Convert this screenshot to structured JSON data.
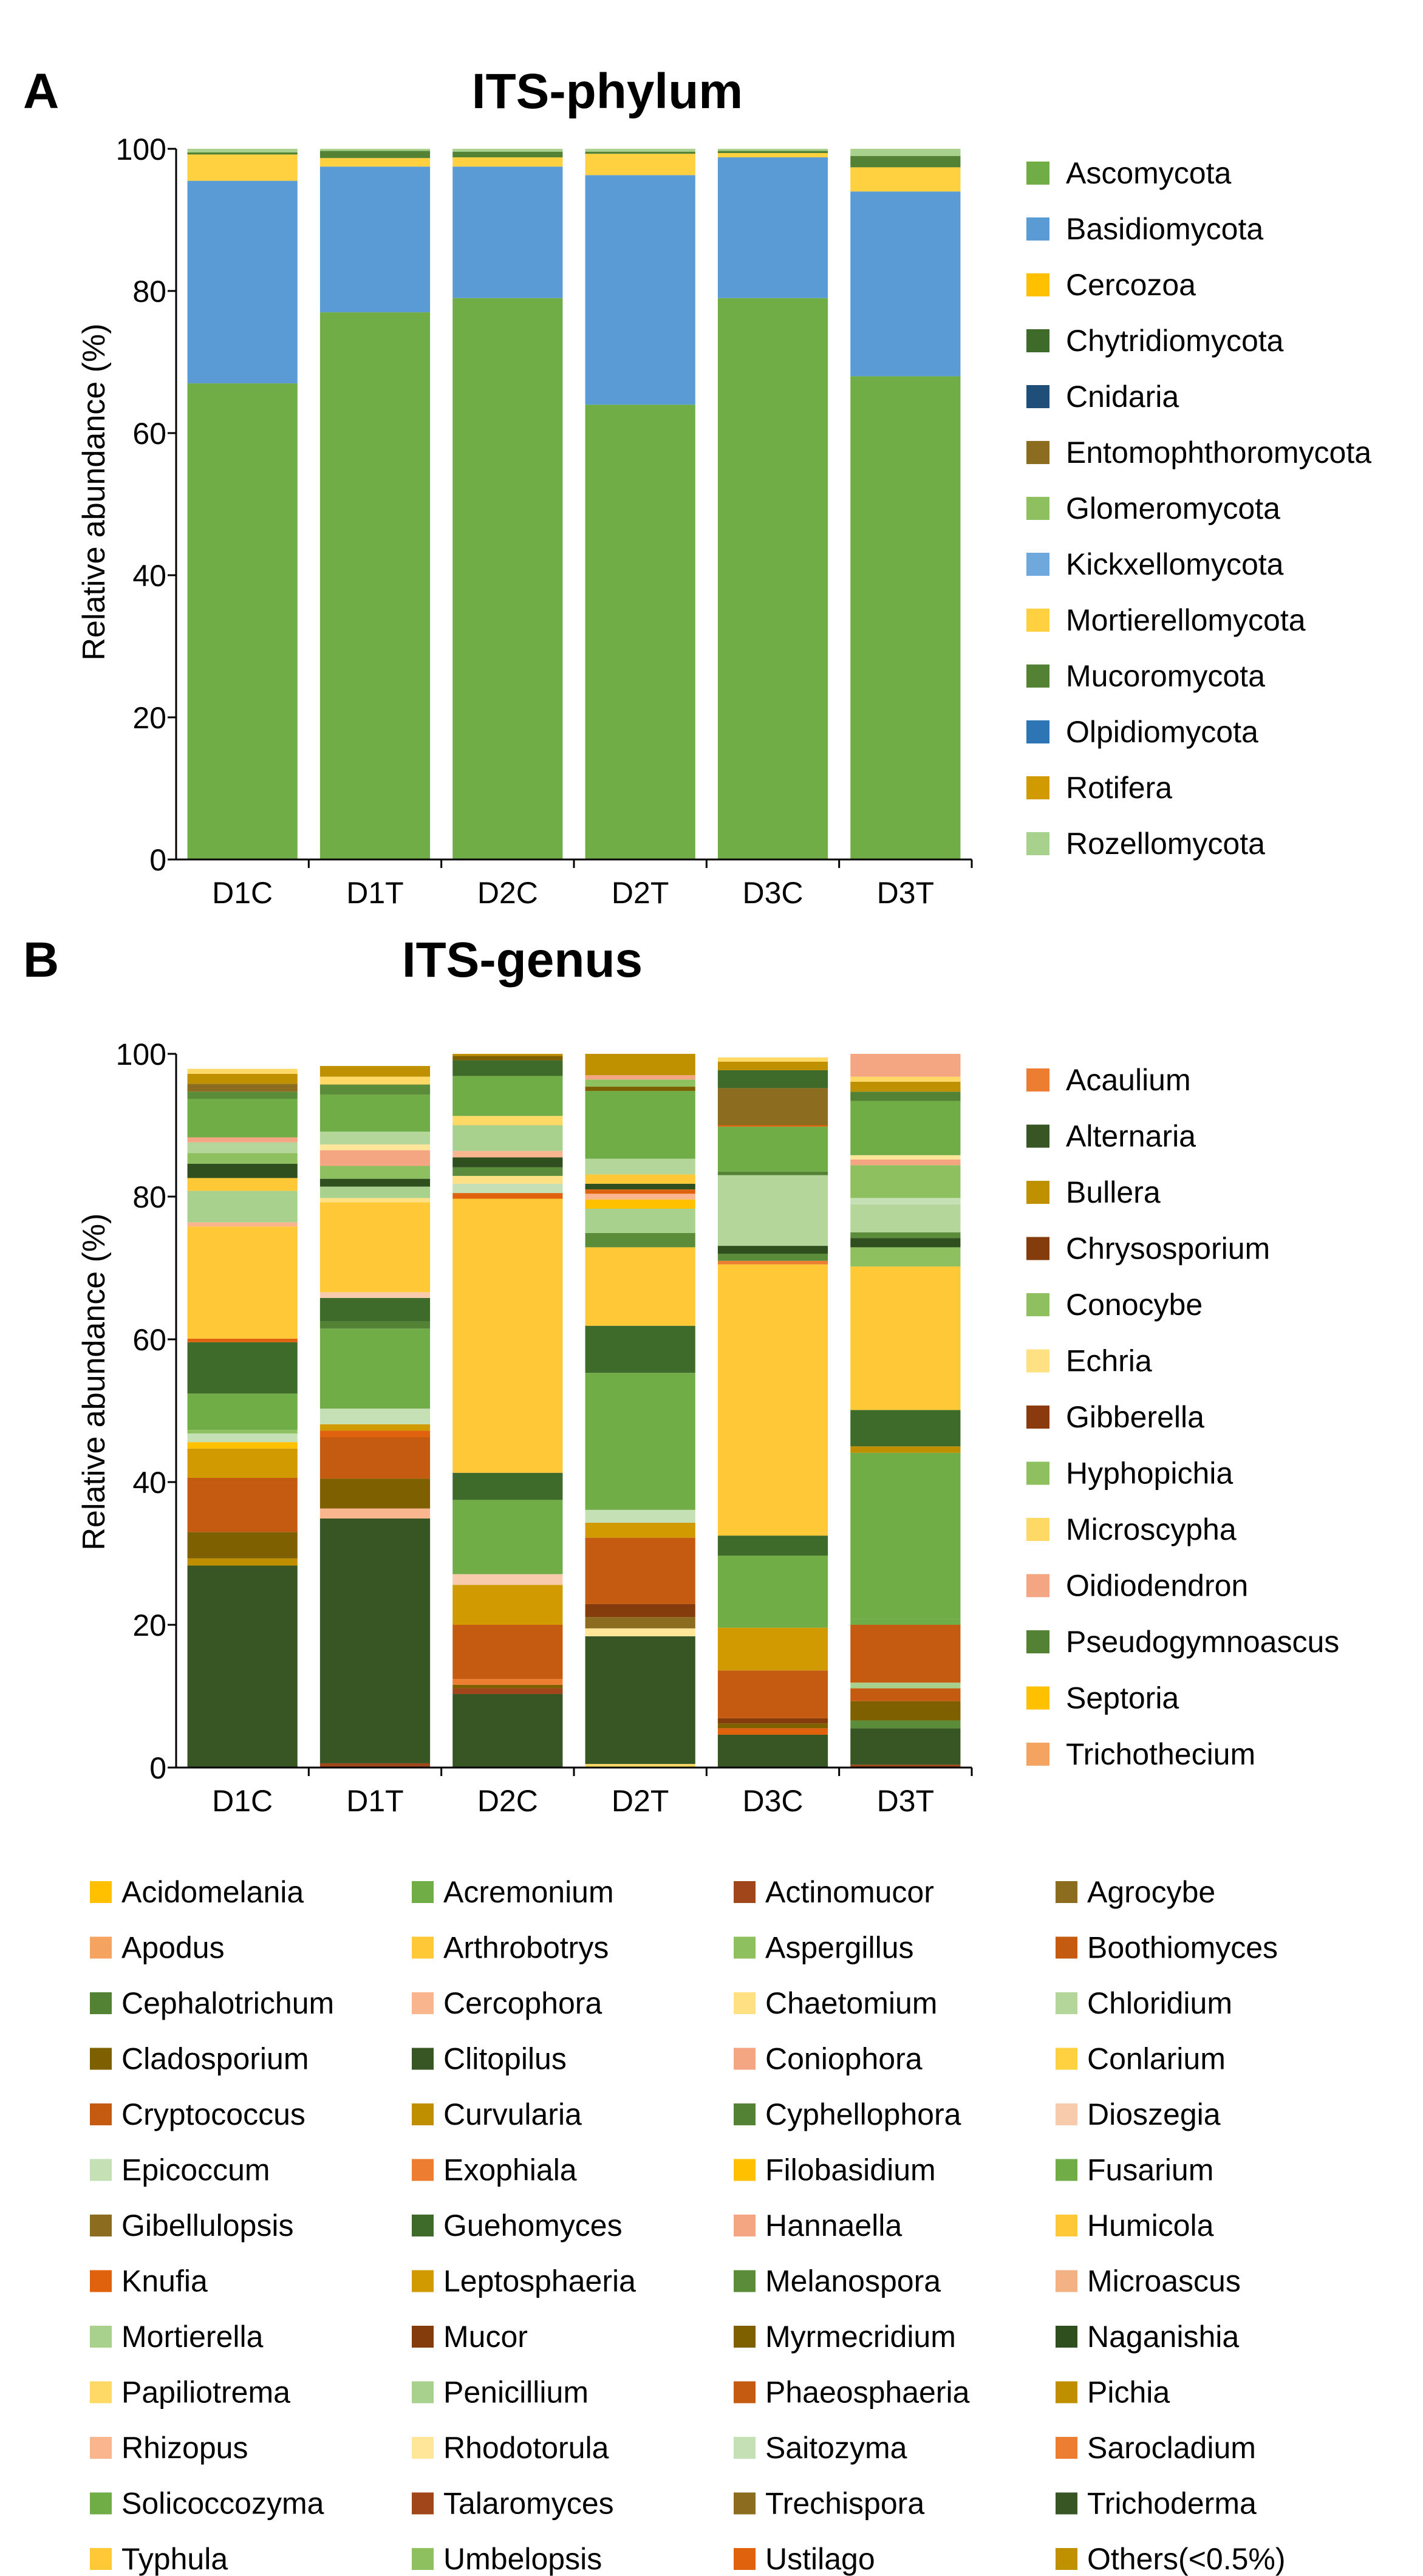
{
  "chart_data": [
    {
      "panel_letter": "A",
      "type": "bar",
      "stacked": true,
      "title": "ITS-phylum",
      "xlabel": "",
      "ylabel": "Relative abundance (%)",
      "ylim": [
        0,
        100
      ],
      "yticks": [
        "0",
        "20",
        "40",
        "60",
        "80",
        "100"
      ],
      "categories": [
        "D1C",
        "D1T",
        "D2C",
        "D2T",
        "D3C",
        "D3T"
      ],
      "series": [
        {
          "name": "Ascomycota",
          "color": "#70ad47",
          "values": [
            67,
            77,
            79,
            64,
            79,
            68
          ]
        },
        {
          "name": "Basidiomycota",
          "color": "#5b9bd5",
          "values": [
            28.5,
            20.5,
            18.5,
            32.3,
            19.8,
            26
          ]
        },
        {
          "name": "Cercozoa",
          "color": "#ffc000",
          "values": [
            0,
            0,
            0,
            0,
            0,
            0
          ]
        },
        {
          "name": "Chytridiomycota",
          "color": "#3e6b2a",
          "values": [
            0,
            0,
            0,
            0,
            0,
            0
          ]
        },
        {
          "name": "Cnidaria",
          "color": "#1f4e79",
          "values": [
            0,
            0,
            0,
            0,
            0,
            0
          ]
        },
        {
          "name": "Entomophthoromycota",
          "color": "#8c6d1f",
          "values": [
            0,
            0,
            0,
            0,
            0,
            0
          ]
        },
        {
          "name": "Glomeromycota",
          "color": "#8fc05f",
          "values": [
            0,
            0,
            0,
            0,
            0,
            0
          ]
        },
        {
          "name": "Kickxellomycota",
          "color": "#6fa8dc",
          "values": [
            0,
            0,
            0,
            0,
            0,
            0
          ]
        },
        {
          "name": "Mortierellomycota",
          "color": "#ffd040",
          "values": [
            3.7,
            1.2,
            1.3,
            3,
            0.6,
            3.4
          ]
        },
        {
          "name": "Mucoromycota",
          "color": "#548235",
          "values": [
            0.3,
            1,
            0.8,
            0.3,
            0.3,
            1.6
          ]
        },
        {
          "name": "Olpidiomycota",
          "color": "#2e75b6",
          "values": [
            0,
            0,
            0,
            0,
            0,
            0
          ]
        },
        {
          "name": "Rotifera",
          "color": "#d09a00",
          "values": [
            0,
            0,
            0,
            0,
            0,
            0
          ]
        },
        {
          "name": "Rozellomycota",
          "color": "#a9d18e",
          "values": [
            0.5,
            0.3,
            0.4,
            0.4,
            0.3,
            1
          ]
        }
      ]
    },
    {
      "panel_letter": "B",
      "type": "bar",
      "stacked": true,
      "title": "ITS-genus",
      "xlabel": "",
      "ylabel": "Relative abundance (%)",
      "ylim": [
        0,
        100
      ],
      "yticks": [
        "0",
        "20",
        "40",
        "60",
        "80",
        "100"
      ],
      "categories": [
        "D1C",
        "D1T",
        "D2C",
        "D2T",
        "D3C",
        "D3T"
      ],
      "right_legend": [
        "Acaulium",
        "Alternaria",
        "Bullera",
        "Chrysosporium",
        "Conocybe",
        "Echria",
        "Gibberella",
        "Hyphopichia",
        "Microscypha",
        "Oidiodendron",
        "Pseudogymnoascus",
        "Septoria",
        "Trichothecium"
      ],
      "bottom_legend": [
        "Acidomelania",
        "Acremonium",
        "Actinomucor",
        "Agrocybe",
        "Apodus",
        "Arthrobotrys",
        "Aspergillus",
        "Boothiomyces",
        "Cephalotrichum",
        "Cercophora",
        "Chaetomium",
        "Chloridium",
        "Cladosporium",
        "Clitopilus",
        "Coniophora",
        "Conlarium",
        "Cryptococcus",
        "Curvularia",
        "Cyphellophora",
        "Dioszegia",
        "Epicoccum",
        "Exophiala",
        "Filobasidium",
        "Fusarium",
        "Gibellulopsis",
        "Guehomyces",
        "Hannaella",
        "Humicola",
        "Knufia",
        "Leptosphaeria",
        "Melanospora",
        "Microascus",
        "Mortierella",
        "Mucor",
        "Myrmecridium",
        "Naganishia",
        "Papiliotrema",
        "Penicillium",
        "Phaeosphaeria",
        "Pichia",
        "Rhizopus",
        "Rhodotorula",
        "Saitozyma",
        "Sarocladium",
        "Solicoccozyma",
        "Talaromyces",
        "Trechispora",
        "Trichoderma",
        "Typhula",
        "Umbelopsis",
        "Ustilago",
        "Others(<0.5%)"
      ],
      "colors": {
        "Acaulium": "#ed7d31",
        "Alternaria": "#375623",
        "Bullera": "#bf9000",
        "Chrysosporium": "#843c0c",
        "Conocybe": "#8fc05f",
        "Echria": "#ffe082",
        "Gibberella": "#8b3a0e",
        "Hyphopichia": "#8fc05f",
        "Microscypha": "#ffd966",
        "Oidiodendron": "#f4a582",
        "Pseudogymnoascus": "#548235",
        "Septoria": "#ffc000",
        "Trichothecium": "#f4a460",
        "Acidomelania": "#ffc000",
        "Acremonium": "#70ad47",
        "Actinomucor": "#a0461a",
        "Agrocybe": "#8c6d1f",
        "Apodus": "#f4a460",
        "Arthrobotrys": "#ffc837",
        "Aspergillus": "#8fc05f",
        "Boothiomyces": "#c55a11",
        "Cephalotrichum": "#548235",
        "Cercophora": "#f8b58e",
        "Chaetomium": "#ffe082",
        "Chloridium": "#b5d69b",
        "Cladosporium": "#7f6000",
        "Clitopilus": "#375623",
        "Coniophora": "#f4a582",
        "Conlarium": "#ffd040",
        "Cryptococcus": "#c55a11",
        "Curvularia": "#bf8f00",
        "Cyphellophora": "#548235",
        "Dioszegia": "#f8cbad",
        "Epicoccum": "#c5e0b4",
        "Exophiala": "#ed7d31",
        "Filobasidium": "#ffc000",
        "Fusarium": "#70ad47",
        "Gibellulopsis": "#8c6d1f",
        "Guehomyces": "#3e6b2a",
        "Hannaella": "#f4a582",
        "Humicola": "#ffc837",
        "Knufia": "#e0620d",
        "Leptosphaeria": "#d09a00",
        "Melanospora": "#5b8c3a",
        "Microascus": "#f4b183",
        "Mortierella": "#a9d18e",
        "Mucor": "#843c0c",
        "Myrmecridium": "#7f6000",
        "Naganishia": "#2f4f1f",
        "Papiliotrema": "#ffd966",
        "Penicillium": "#a9d18e",
        "Phaeosphaeria": "#c55a11",
        "Pichia": "#bf8f00",
        "Rhizopus": "#f8b58e",
        "Rhodotorula": "#ffe699",
        "Saitozyma": "#c5e0b4",
        "Sarocladium": "#ed7d31",
        "Solicoccozyma": "#70ad47",
        "Talaromyces": "#a0461a",
        "Trechispora": "#8c6d1f",
        "Trichoderma": "#375623",
        "Typhula": "#ffc837",
        "Umbelopsis": "#8fc05f",
        "Ustilago": "#e0620d",
        "Others(<0.5%)": "#bf9000"
      },
      "stacks": [
        [
          {
            "name": "Trichoderma",
            "value": 28.3
          },
          {
            "name": "Curvularia",
            "value": 1
          },
          {
            "name": "Cladosporium",
            "value": 3.7
          },
          {
            "name": "Boothiomyces",
            "value": 7.6
          },
          {
            "name": "Leptosphaeria",
            "value": 4.1
          },
          {
            "name": "Filobasidium",
            "value": 0.9
          },
          {
            "name": "Epicoccum",
            "value": 1.2
          },
          {
            "name": "Aspergillus",
            "value": 0.5
          },
          {
            "name": "Acremonium",
            "value": 5.1
          },
          {
            "name": "Guehomyces",
            "value": 7.2
          },
          {
            "name": "Ustilago",
            "value": 0.5
          },
          {
            "name": "Arthrobotrys",
            "value": 15.7
          },
          {
            "name": "Cercophora",
            "value": 0.6
          },
          {
            "name": "Penicillium",
            "value": 4.4
          },
          {
            "name": "Humicola",
            "value": 1.8
          },
          {
            "name": "Naganishia",
            "value": 2
          },
          {
            "name": "Umbelopsis",
            "value": 1.5
          },
          {
            "name": "Chloridium",
            "value": 1.5
          },
          {
            "name": "Coniophora",
            "value": 0.7
          },
          {
            "name": "Fusarium",
            "value": 5.4
          },
          {
            "name": "Melanospora",
            "value": 1
          },
          {
            "name": "Agrocybe",
            "value": 1.1
          },
          {
            "name": "Others(<0.5%)",
            "value": 1.4
          },
          {
            "name": "Papiliotrema",
            "value": 0.7
          }
        ],
        [
          {
            "name": "Talaromyces",
            "value": 0.6
          },
          {
            "name": "Trichoderma",
            "value": 34.3
          },
          {
            "name": "Rhizopus",
            "value": 1.4
          },
          {
            "name": "Cladosporium",
            "value": 4.2
          },
          {
            "name": "Boothiomyces",
            "value": 5.8
          },
          {
            "name": "Knufia",
            "value": 0.9
          },
          {
            "name": "Leptosphaeria",
            "value": 0.9
          },
          {
            "name": "Epicoccum",
            "value": 2.2
          },
          {
            "name": "Acremonium",
            "value": 11.2
          },
          {
            "name": "Cyphellophora",
            "value": 1
          },
          {
            "name": "Guehomyces",
            "value": 3.3
          },
          {
            "name": "Dioszegia",
            "value": 0.8
          },
          {
            "name": "Arthrobotrys",
            "value": 12.6
          },
          {
            "name": "Chaetomium",
            "value": 0.6
          },
          {
            "name": "Penicillium",
            "value": 1.6
          },
          {
            "name": "Naganishia",
            "value": 1.1
          },
          {
            "name": "Umbelopsis",
            "value": 1.8
          },
          {
            "name": "Hannaella",
            "value": 2.2
          },
          {
            "name": "Rhodotorula",
            "value": 0.8
          },
          {
            "name": "Chloridium",
            "value": 1.8
          },
          {
            "name": "Fusarium",
            "value": 5.2
          },
          {
            "name": "Melanospora",
            "value": 1.4
          },
          {
            "name": "Papiliotrema",
            "value": 1.1
          },
          {
            "name": "Others(<0.5%)",
            "value": 1.5
          }
        ],
        [
          {
            "name": "Trichoderma",
            "value": 10.3
          },
          {
            "name": "Talaromyces",
            "value": 0.8
          },
          {
            "name": "Cladosporium",
            "value": 0.5
          },
          {
            "name": "Exophiala",
            "value": 0.8
          },
          {
            "name": "Boothiomyces",
            "value": 7.6
          },
          {
            "name": "Leptosphaeria",
            "value": 5.6
          },
          {
            "name": "Dioszegia",
            "value": 1.5
          },
          {
            "name": "Acremonium",
            "value": 10.4
          },
          {
            "name": "Guehomyces",
            "value": 3.8
          },
          {
            "name": "Arthrobotrys",
            "value": 38.4
          },
          {
            "name": "Ustilago",
            "value": 0.8
          },
          {
            "name": "Epicoccum",
            "value": 1.3
          },
          {
            "name": "Chaetomium",
            "value": 1.1
          },
          {
            "name": "Melanospora",
            "value": 1.2
          },
          {
            "name": "Naganishia",
            "value": 1.4
          },
          {
            "name": "Cercophora",
            "value": 0.9
          },
          {
            "name": "Penicillium",
            "value": 3.6
          },
          {
            "name": "Papiliotrema",
            "value": 1.3
          },
          {
            "name": "Fusarium",
            "value": 5.6
          },
          {
            "name": "Guehomyces",
            "value": 2.2
          },
          {
            "name": "Cladosporium",
            "value": 0.6
          },
          {
            "name": "Others(<0.5%)",
            "value": 0.3
          }
        ],
        [
          {
            "name": "Papiliotrema",
            "value": 0.5
          },
          {
            "name": "Trichoderma",
            "value": 17.9
          },
          {
            "name": "Rhodotorula",
            "value": 1.1
          },
          {
            "name": "Agrocybe",
            "value": 1.6
          },
          {
            "name": "Mucor",
            "value": 1.8
          },
          {
            "name": "Boothiomyces",
            "value": 9.3
          },
          {
            "name": "Leptosphaeria",
            "value": 2.1
          },
          {
            "name": "Epicoccum",
            "value": 1.8
          },
          {
            "name": "Acremonium",
            "value": 19.2
          },
          {
            "name": "Guehomyces",
            "value": 6.6
          },
          {
            "name": "Arthrobotrys",
            "value": 11
          },
          {
            "name": "Melanospora",
            "value": 2
          },
          {
            "name": "Penicillium",
            "value": 3.4
          },
          {
            "name": "Filobasidium",
            "value": 1.3
          },
          {
            "name": "Cercophora",
            "value": 0.8
          },
          {
            "name": "Knufia",
            "value": 0.6
          },
          {
            "name": "Naganishia",
            "value": 0.8
          },
          {
            "name": "Humicola",
            "value": 1.3
          },
          {
            "name": "Chloridium",
            "value": 2.2
          },
          {
            "name": "Fusarium",
            "value": 9.5
          },
          {
            "name": "Cladosporium",
            "value": 0.6
          },
          {
            "name": "Aspergillus",
            "value": 1
          },
          {
            "name": "Hannaella",
            "value": 0.6
          },
          {
            "name": "Others(<0.5%)",
            "value": 3
          }
        ],
        [
          {
            "name": "Trichoderma",
            "value": 4.6
          },
          {
            "name": "Ustilago",
            "value": 0.9
          },
          {
            "name": "Cladosporium",
            "value": 0.7
          },
          {
            "name": "Mucor",
            "value": 0.7
          },
          {
            "name": "Boothiomyces",
            "value": 6.7
          },
          {
            "name": "Leptosphaeria",
            "value": 6
          },
          {
            "name": "Acremonium",
            "value": 10.1
          },
          {
            "name": "Guehomyces",
            "value": 2.8
          },
          {
            "name": "Humicola",
            "value": 0.3
          },
          {
            "name": "Arthrobotrys",
            "value": 37.7
          },
          {
            "name": "Exophiala",
            "value": 0.5
          },
          {
            "name": "Melanospora",
            "value": 1
          },
          {
            "name": "Naganishia",
            "value": 1.1
          },
          {
            "name": "Chloridium",
            "value": 9.9
          },
          {
            "name": "Cephalotrichum",
            "value": 0.5
          },
          {
            "name": "Fusarium",
            "value": 6.3
          },
          {
            "name": "Knufia",
            "value": 0.2
          },
          {
            "name": "Agrocybe",
            "value": 5.2
          },
          {
            "name": "Guehomyces",
            "value": 2.5
          },
          {
            "name": "Others(<0.5%)",
            "value": 1.2
          },
          {
            "name": "Papiliotrema",
            "value": 0.6
          }
        ],
        [
          {
            "name": "Talaromyces",
            "value": 0.4
          },
          {
            "name": "Trichoderma",
            "value": 5.1
          },
          {
            "name": "Melanospora",
            "value": 1.1
          },
          {
            "name": "Cladosporium",
            "value": 2.7
          },
          {
            "name": "Phaeosphaeria",
            "value": 1.8
          },
          {
            "name": "Penicillium",
            "value": 0.8
          },
          {
            "name": "Boothiomyces",
            "value": 8.1
          },
          {
            "name": "Solicoccozyma",
            "value": 0.8
          },
          {
            "name": "Acremonium",
            "value": 23.3
          },
          {
            "name": "Pichia",
            "value": 0.9
          },
          {
            "name": "Guehomyces",
            "value": 5.1
          },
          {
            "name": "Arthrobotrys",
            "value": 20.1
          },
          {
            "name": "Aspergillus",
            "value": 2.7
          },
          {
            "name": "Naganishia",
            "value": 1.3
          },
          {
            "name": "Melanospora",
            "value": 0.8
          },
          {
            "name": "Chloridium",
            "value": 3.9
          },
          {
            "name": "Epicoccum",
            "value": 0.9
          },
          {
            "name": "Umbelopsis",
            "value": 4.6
          },
          {
            "name": "Coniophora",
            "value": 0.8
          },
          {
            "name": "Rhodotorula",
            "value": 0.6
          },
          {
            "name": "Fusarium",
            "value": 7.6
          },
          {
            "name": "Cyphellophora",
            "value": 1.3
          },
          {
            "name": "Others(<0.5%)",
            "value": 1.4
          },
          {
            "name": "Papiliotrema",
            "value": 0.7
          },
          {
            "name": "Hannaella",
            "value": 3.2
          }
        ]
      ]
    }
  ]
}
